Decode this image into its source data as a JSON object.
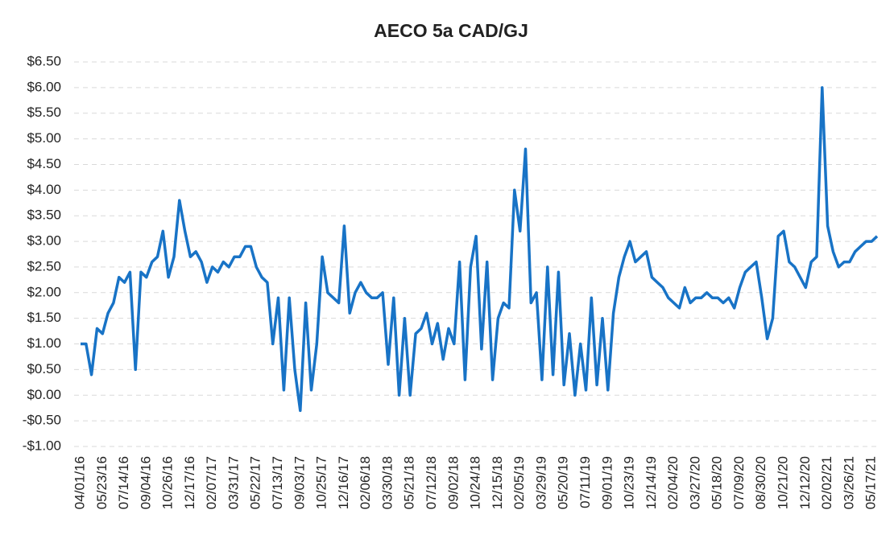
{
  "chart_data": {
    "type": "line",
    "title": "AECO 5a CAD/GJ",
    "categories": [
      "04/01/16",
      null,
      null,
      null,
      "05/23/16",
      null,
      null,
      null,
      "07/14/16",
      null,
      null,
      null,
      "09/04/16",
      null,
      null,
      null,
      "10/26/16",
      null,
      null,
      null,
      "12/17/16",
      null,
      null,
      null,
      "02/07/17",
      null,
      null,
      null,
      "03/31/17",
      null,
      null,
      null,
      "05/22/17",
      null,
      null,
      null,
      "07/13/17",
      null,
      null,
      null,
      "09/03/17",
      null,
      null,
      null,
      "10/25/17",
      null,
      null,
      null,
      "12/16/17",
      null,
      null,
      null,
      "02/06/18",
      null,
      null,
      null,
      "03/30/18",
      null,
      null,
      null,
      "05/21/18",
      null,
      null,
      null,
      "07/12/18",
      null,
      null,
      null,
      "09/02/18",
      null,
      null,
      null,
      "10/24/18",
      null,
      null,
      null,
      "12/15/18",
      null,
      null,
      null,
      "02/05/19",
      null,
      null,
      null,
      "03/29/19",
      null,
      null,
      null,
      "05/20/19",
      null,
      null,
      null,
      "07/11/19",
      null,
      null,
      null,
      "09/01/19",
      null,
      null,
      null,
      "10/23/19",
      null,
      null,
      null,
      "12/14/19",
      null,
      null,
      null,
      "02/04/20",
      null,
      null,
      null,
      "03/27/20",
      null,
      null,
      null,
      "05/18/20",
      null,
      null,
      null,
      "07/09/20",
      null,
      null,
      null,
      "08/30/20",
      null,
      null,
      null,
      "10/21/20",
      null,
      null,
      null,
      "12/12/20",
      null,
      null,
      null,
      "02/02/21",
      null,
      null,
      null,
      "03/26/21",
      null,
      null,
      null,
      "05/17/21",
      null
    ],
    "series": [
      {
        "name": "AECO 5a",
        "color": "#1873c6",
        "values": [
          1.0,
          1.0,
          0.4,
          1.3,
          1.2,
          1.6,
          1.8,
          2.3,
          2.2,
          2.4,
          0.5,
          2.4,
          2.3,
          2.6,
          2.7,
          3.2,
          2.3,
          2.7,
          3.8,
          3.2,
          2.7,
          2.8,
          2.6,
          2.2,
          2.5,
          2.4,
          2.6,
          2.5,
          2.7,
          2.7,
          2.9,
          2.9,
          2.5,
          2.3,
          2.2,
          1.0,
          1.9,
          0.1,
          1.9,
          0.5,
          -0.3,
          1.8,
          0.1,
          1.0,
          2.7,
          2.0,
          1.9,
          1.8,
          3.3,
          1.6,
          2.0,
          2.2,
          2.0,
          1.9,
          1.9,
          2.0,
          0.6,
          1.9,
          0.0,
          1.5,
          0.0,
          1.2,
          1.3,
          1.6,
          1.0,
          1.4,
          0.7,
          1.3,
          1.0,
          2.6,
          0.3,
          2.5,
          3.1,
          0.9,
          2.6,
          0.3,
          1.5,
          1.8,
          1.7,
          4.0,
          3.2,
          4.8,
          1.8,
          2.0,
          0.3,
          2.5,
          0.4,
          2.4,
          0.2,
          1.2,
          0.0,
          1.0,
          0.1,
          1.9,
          0.2,
          1.5,
          0.1,
          1.6,
          2.3,
          2.7,
          3.0,
          2.6,
          2.7,
          2.8,
          2.3,
          2.2,
          2.1,
          1.9,
          1.8,
          1.7,
          2.1,
          1.8,
          1.9,
          1.9,
          2.0,
          1.9,
          1.9,
          1.8,
          1.9,
          1.7,
          2.1,
          2.4,
          2.5,
          2.6,
          1.9,
          1.1,
          1.5,
          3.1,
          3.2,
          2.6,
          2.5,
          2.3,
          2.1,
          2.6,
          2.7,
          6.0,
          3.3,
          2.8,
          2.5,
          2.6,
          2.6,
          2.8,
          2.9,
          3.0,
          3.0,
          3.1
        ]
      }
    ],
    "ylim": [
      -1,
      6.5
    ],
    "yticks": [
      {
        "value": -1,
        "label": "-$1.00"
      },
      {
        "value": -0.5,
        "label": "-$0.50"
      },
      {
        "value": 0,
        "label": "$0.00"
      },
      {
        "value": 0.5,
        "label": "$0.50"
      },
      {
        "value": 1,
        "label": "$1.00"
      },
      {
        "value": 1.5,
        "label": "$1.50"
      },
      {
        "value": 2,
        "label": "$2.00"
      },
      {
        "value": 2.5,
        "label": "$2.50"
      },
      {
        "value": 3,
        "label": "$3.00"
      },
      {
        "value": 3.5,
        "label": "$3.50"
      },
      {
        "value": 4,
        "label": "$4.00"
      },
      {
        "value": 4.5,
        "label": "$4.50"
      },
      {
        "value": 5,
        "label": "$5.00"
      },
      {
        "value": 5.5,
        "label": "$5.50"
      },
      {
        "value": 6,
        "label": "$6.00"
      },
      {
        "value": 6.5,
        "label": "$6.50"
      }
    ],
    "grid": true
  }
}
